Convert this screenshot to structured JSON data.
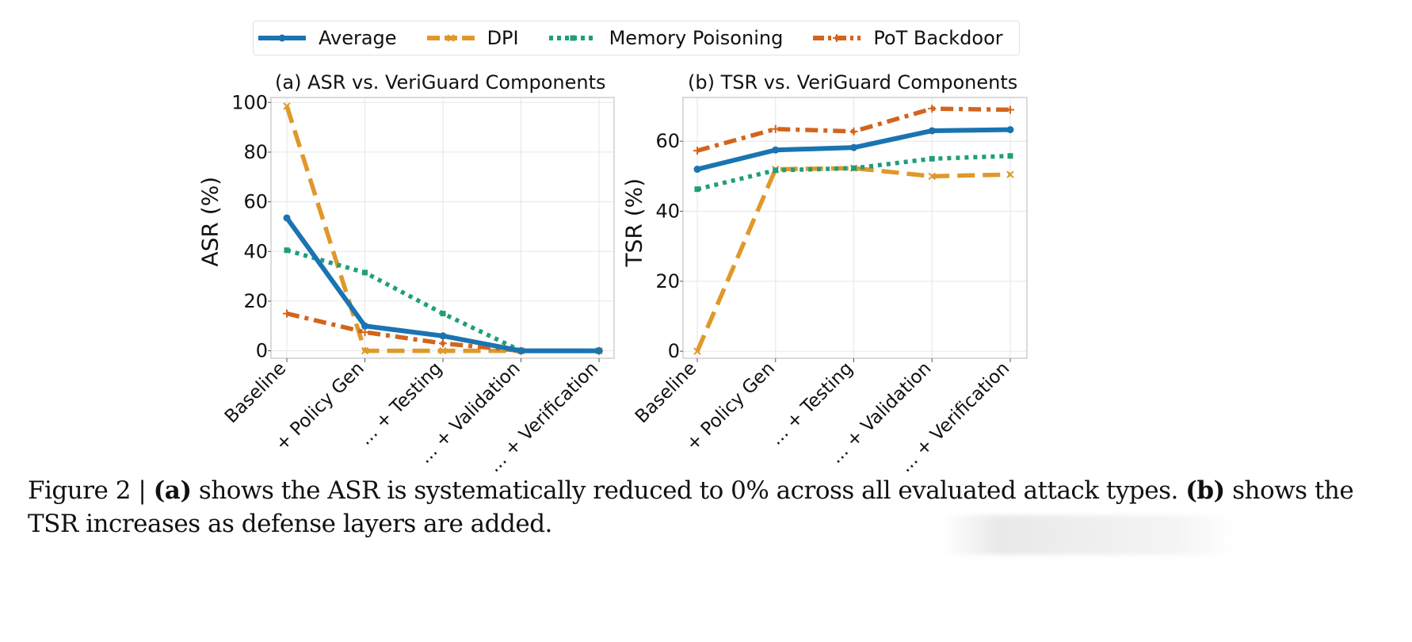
{
  "legend": [
    {
      "name": "Average",
      "color": "#1a74b2",
      "style": "solid",
      "marker": "circle"
    },
    {
      "name": "DPI",
      "color": "#e0982a",
      "style": "dashed",
      "marker": "x"
    },
    {
      "name": "Memory Poisoning",
      "color": "#1f9e7a",
      "style": "dotted",
      "marker": "square"
    },
    {
      "name": "PoT Backdoor",
      "color": "#d2651d",
      "style": "dashdot",
      "marker": "plus"
    }
  ],
  "chart_data": [
    {
      "type": "line",
      "title": "(a) ASR vs. VeriGuard Components",
      "xlabel": "",
      "ylabel": "ASR (%)",
      "categories": [
        "Baseline",
        "+ Policy Gen",
        "... + Testing",
        "... + Validation",
        "... + Verification"
      ],
      "ylim": [
        -3,
        102
      ],
      "yticks": [
        0,
        20,
        40,
        60,
        80,
        100
      ],
      "grid": true,
      "legend_position": "top-center (shared)",
      "series": [
        {
          "name": "Average",
          "values": [
            53.5,
            10,
            6,
            0,
            0
          ]
        },
        {
          "name": "DPI",
          "values": [
            98.5,
            0,
            0,
            0,
            0
          ]
        },
        {
          "name": "Memory Poisoning",
          "values": [
            40.5,
            31.5,
            15,
            0,
            0
          ]
        },
        {
          "name": "PoT Backdoor",
          "values": [
            15,
            7.5,
            3,
            0,
            0
          ]
        }
      ]
    },
    {
      "type": "line",
      "title": "(b) TSR vs. VeriGuard Components",
      "xlabel": "",
      "ylabel": "TSR (%)",
      "categories": [
        "Baseline",
        "+ Policy Gen",
        "... + Testing",
        "... + Validation",
        "... + Verification"
      ],
      "ylim": [
        -2,
        72.5
      ],
      "yticks": [
        0,
        20,
        40,
        60
      ],
      "grid": true,
      "legend_position": "top-center (shared)",
      "series": [
        {
          "name": "Average",
          "values": [
            52,
            57.5,
            58.2,
            63,
            63.3
          ]
        },
        {
          "name": "DPI",
          "values": [
            0,
            52,
            52.3,
            50,
            50.5
          ]
        },
        {
          "name": "Memory Poisoning",
          "values": [
            46.3,
            51.7,
            52.3,
            55,
            55.8
          ]
        },
        {
          "name": "PoT Backdoor",
          "values": [
            57.3,
            63.5,
            62.8,
            69.3,
            69
          ]
        }
      ]
    }
  ],
  "caption": {
    "prefix": "Figure 2 | ",
    "a_label": "(a)",
    "a_text": " shows the ASR is systematically reduced to 0% across all evaluated attack types. ",
    "b_label": "(b)",
    "b_text": " shows the TSR increases as defense layers are added."
  }
}
